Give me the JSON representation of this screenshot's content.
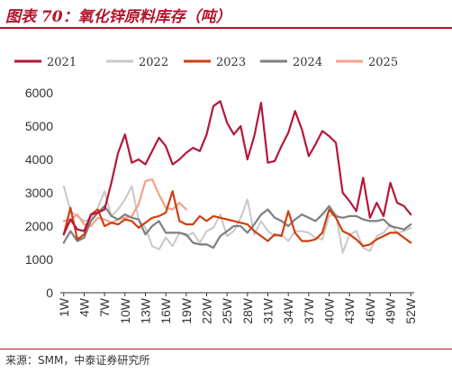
{
  "header": {
    "title": "图表 70：氧化锌原料库存（吨）"
  },
  "footer": {
    "source": "来源：SMM，中泰证券研究所"
  },
  "chart_data": {
    "type": "line",
    "title": "图表 70：氧化锌原料库存（吨）",
    "xlabel": "",
    "ylabel": "",
    "ylim": [
      0,
      6000
    ],
    "y_ticks": [
      0,
      1000,
      2000,
      3000,
      4000,
      5000,
      6000
    ],
    "x_tick_labels": [
      "1W",
      "4W",
      "7W",
      "10W",
      "13W",
      "16W",
      "19W",
      "22W",
      "25W",
      "28W",
      "31W",
      "34W",
      "37W",
      "40W",
      "43W",
      "46W",
      "49W",
      "52W"
    ],
    "legend_position": "top",
    "grid": false,
    "series": [
      {
        "name": "2021",
        "color": "#b5173a",
        "width": 2.2,
        "values": [
          1750,
          2200,
          1900,
          1850,
          2350,
          2400,
          2500,
          3300,
          4200,
          4750,
          3900,
          4000,
          3850,
          4250,
          4650,
          4400,
          3850,
          4000,
          4200,
          4350,
          4250,
          4750,
          5600,
          5750,
          5100,
          4750,
          5000,
          4000,
          4700,
          5700,
          3900,
          3950,
          4400,
          4800,
          5450,
          4900,
          4100,
          4450,
          4850,
          4700,
          4500,
          3000,
          2750,
          2450,
          3450,
          2250,
          2700,
          2300,
          3300,
          2700,
          2600,
          2350
        ]
      },
      {
        "name": "2022",
        "color": "#c8c8c8",
        "width": 2,
        "values": [
          3200,
          2450,
          2300,
          2150,
          2200,
          2550,
          3050,
          2300,
          2500,
          2800,
          3200,
          2200,
          1950,
          1400,
          1300,
          1650,
          1400,
          1800,
          1700,
          1800,
          1500,
          1850,
          1950,
          2350,
          1700,
          1850,
          2250,
          2800,
          1750,
          2150,
          1850,
          1700,
          1750,
          1550,
          1850,
          1850,
          1800,
          1650,
          1600,
          2300,
          2350,
          1200,
          1750,
          1850,
          1350,
          1250,
          1700,
          1800,
          2050,
          1800,
          1850,
          1950
        ]
      },
      {
        "name": "2023",
        "color": "#d03f10",
        "width": 2.2,
        "values": [
          1750,
          2550,
          1600,
          1750,
          2350,
          2500,
          2000,
          2100,
          2050,
          2200,
          2150,
          1950,
          2100,
          2250,
          2300,
          2400,
          3050,
          2150,
          2050,
          2050,
          2300,
          2150,
          2300,
          2250,
          2200,
          2150,
          2100,
          2050,
          1850,
          1700,
          1550,
          1750,
          1700,
          2450,
          1800,
          1550,
          1550,
          1600,
          1800,
          2500,
          2250,
          1850,
          1750,
          1600,
          1400,
          1450,
          1600,
          1700,
          1800,
          1800,
          1650,
          1500
        ]
      },
      {
        "name": "2024",
        "color": "#7f7f7f",
        "width": 2.2,
        "values": [
          1500,
          1850,
          1550,
          1650,
          2150,
          2400,
          2600,
          2300,
          2200,
          2350,
          2250,
          2200,
          1750,
          2000,
          2150,
          1800,
          1800,
          1800,
          1750,
          1500,
          1450,
          1450,
          1350,
          1700,
          1850,
          2000,
          2000,
          1800,
          2050,
          2350,
          2500,
          2250,
          2150,
          2000,
          2200,
          2350,
          2250,
          2150,
          2350,
          2600,
          2300,
          2250,
          2300,
          2300,
          2200,
          2150,
          2150,
          2200,
          2000,
          1950,
          1900,
          2050
        ]
      },
      {
        "name": "2025",
        "color": "#f4a08c",
        "width": 2.2,
        "values": [
          2150,
          2200,
          2350,
          2050,
          2000,
          2250,
          2200,
          2100,
          2200,
          2250,
          2300,
          2650,
          3350,
          3400,
          2950,
          2550,
          2500,
          2700,
          2500
        ]
      }
    ]
  }
}
